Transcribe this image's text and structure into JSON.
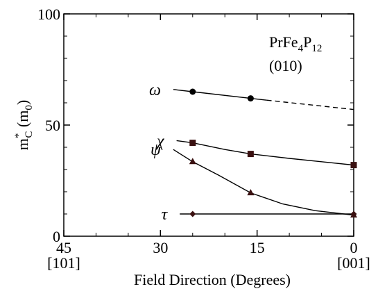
{
  "chart_data": {
    "type": "scatter",
    "title": "",
    "xlabel": "Field Direction (Degrees)",
    "ylabel": "m*C (m0)",
    "ylabel_parts": {
      "main": "m",
      "sup": "*",
      "sub": "C",
      "unit": "(m",
      "unit_sub": "0",
      "close": ")"
    },
    "xlim": [
      45,
      0
    ],
    "ylim": [
      0,
      100
    ],
    "x_reversed": true,
    "xticks": [
      45,
      30,
      15,
      0
    ],
    "yticks": [
      0,
      50,
      100
    ],
    "xtick_labels": [
      "45",
      "30",
      "15",
      "0"
    ],
    "ytick_labels": [
      "0",
      "50",
      "100"
    ],
    "direction_labels": [
      {
        "x": 45,
        "text": "[101]"
      },
      {
        "x": 0,
        "text": "[001]"
      }
    ],
    "annotation": {
      "compound": {
        "p1": "PrFe",
        "s1": "4",
        "p2": "P",
        "s2": "12"
      },
      "plane": "(010)"
    },
    "series": [
      {
        "name": "ω",
        "marker": "circle",
        "points": [
          [
            25,
            65
          ],
          [
            16,
            62
          ]
        ],
        "fit": [
          [
            28,
            66
          ],
          [
            25,
            65
          ],
          [
            16,
            62
          ],
          [
            13.5,
            61.2
          ]
        ],
        "extrapolation": [
          [
            13.5,
            61.2
          ],
          [
            0,
            57
          ]
        ]
      },
      {
        "name": "χ",
        "marker": "square",
        "points": [
          [
            25,
            42
          ],
          [
            16,
            37
          ],
          [
            0,
            32
          ]
        ],
        "fit": [
          [
            27.5,
            43
          ],
          [
            25,
            42
          ],
          [
            20,
            39
          ],
          [
            16,
            37
          ],
          [
            10,
            35
          ],
          [
            5,
            33.5
          ],
          [
            0,
            32
          ]
        ]
      },
      {
        "name": "ψ",
        "marker": "triangle",
        "points": [
          [
            25,
            33.5
          ],
          [
            16,
            19.5
          ],
          [
            0,
            9.5
          ]
        ],
        "fit": [
          [
            28,
            39
          ],
          [
            25,
            33.5
          ],
          [
            21,
            27.5
          ],
          [
            16,
            19.5
          ],
          [
            11,
            14.5
          ],
          [
            6,
            11.5
          ],
          [
            0,
            9.5
          ]
        ]
      },
      {
        "name": "τ",
        "marker": "diamond",
        "points": [
          [
            25,
            10
          ],
          [
            0,
            10
          ]
        ],
        "fit": [
          [
            27,
            10
          ],
          [
            0,
            10
          ]
        ]
      }
    ],
    "colors": {
      "marker_fill": "#3a1010",
      "line": "#000000"
    }
  }
}
